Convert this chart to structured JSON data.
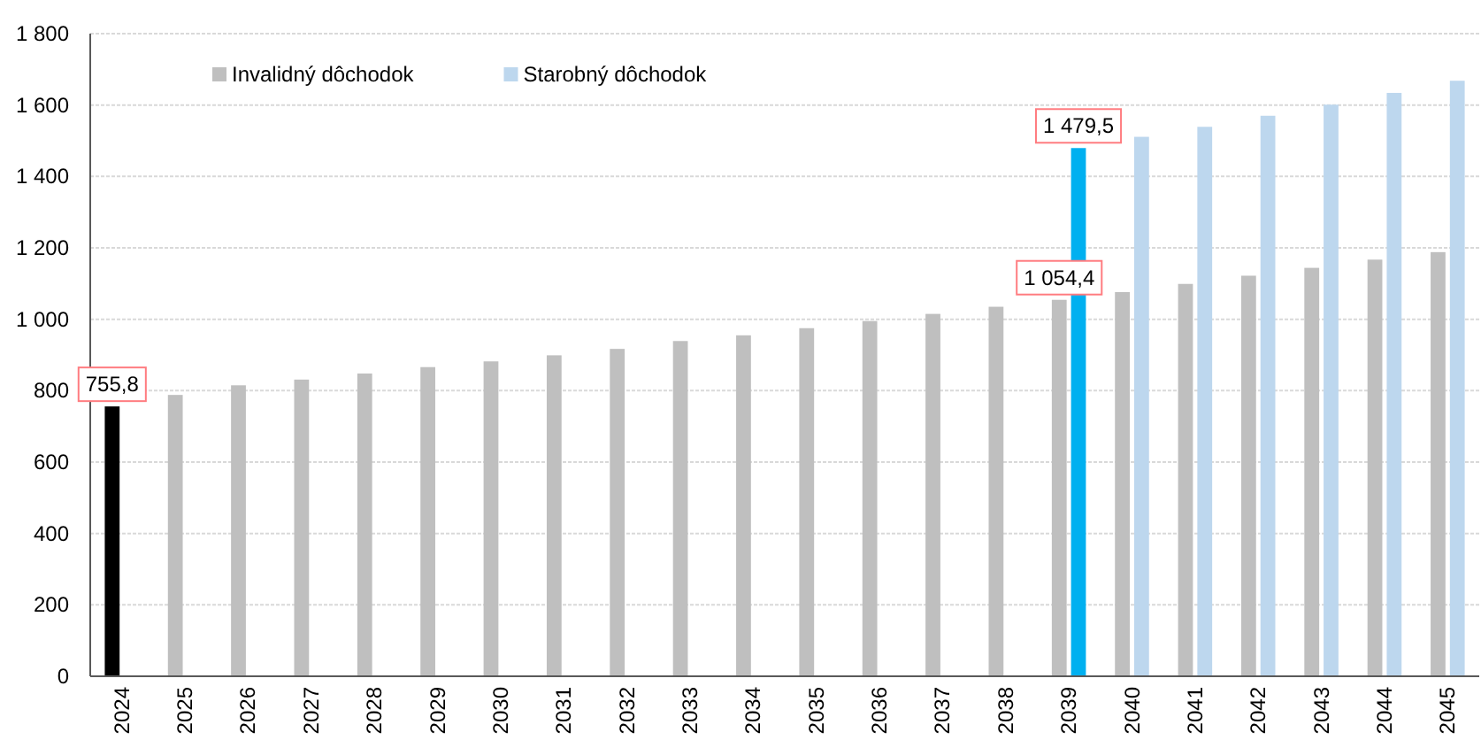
{
  "chart_data": {
    "type": "bar",
    "categories": [
      "2024",
      "2025",
      "2026",
      "2027",
      "2028",
      "2029",
      "2030",
      "2031",
      "2032",
      "2033",
      "2034",
      "2035",
      "2036",
      "2037",
      "2038",
      "2039",
      "2040",
      "2041",
      "2042",
      "2043",
      "2044",
      "2045"
    ],
    "series": [
      {
        "name": "Invalidný dôchodok",
        "color": "#bfbfbf",
        "colors": [
          "#000000",
          "#bfbfbf",
          "#bfbfbf",
          "#bfbfbf",
          "#bfbfbf",
          "#bfbfbf",
          "#bfbfbf",
          "#bfbfbf",
          "#bfbfbf",
          "#bfbfbf",
          "#bfbfbf",
          "#bfbfbf",
          "#bfbfbf",
          "#bfbfbf",
          "#bfbfbf",
          "#bfbfbf",
          "#bfbfbf",
          "#bfbfbf",
          "#bfbfbf",
          "#bfbfbf",
          "#bfbfbf",
          "#bfbfbf"
        ],
        "values": [
          755.8,
          788,
          815,
          831,
          848,
          866,
          882,
          899,
          917,
          939,
          955,
          975,
          995,
          1015,
          1035,
          1054.4,
          1076,
          1099,
          1122,
          1144,
          1167,
          1188
        ],
        "value_labels": [
          "755,8",
          null,
          null,
          null,
          null,
          null,
          null,
          null,
          null,
          null,
          null,
          null,
          null,
          null,
          null,
          "1 054,4",
          null,
          null,
          null,
          null,
          null,
          null
        ]
      },
      {
        "name": "Starobný dôchodok",
        "color": "#bdd7ee",
        "colors": [
          null,
          null,
          null,
          null,
          null,
          null,
          null,
          null,
          null,
          null,
          null,
          null,
          null,
          null,
          null,
          "#00b0f0",
          "#bdd7ee",
          "#bdd7ee",
          "#bdd7ee",
          "#bdd7ee",
          "#bdd7ee",
          "#bdd7ee"
        ],
        "values": [
          null,
          null,
          null,
          null,
          null,
          null,
          null,
          null,
          null,
          null,
          null,
          null,
          null,
          null,
          null,
          1479.5,
          1511,
          1539,
          1570,
          1601,
          1634,
          1668
        ],
        "value_labels": [
          null,
          null,
          null,
          null,
          null,
          null,
          null,
          null,
          null,
          null,
          null,
          null,
          null,
          null,
          null,
          "1 479,5",
          null,
          null,
          null,
          null,
          null,
          null
        ]
      }
    ],
    "ylim": [
      0,
      1800
    ],
    "yticks": [
      0,
      200,
      400,
      600,
      800,
      {
        "value": 1000,
        "label": "1 000"
      },
      {
        "value": 1200,
        "label": "1 200"
      },
      {
        "value": 1400,
        "label": "1 400"
      },
      {
        "value": 1600,
        "label": "1 600"
      },
      {
        "value": 1800,
        "label": "1 800"
      }
    ],
    "grid": "y",
    "legend": "top left"
  }
}
